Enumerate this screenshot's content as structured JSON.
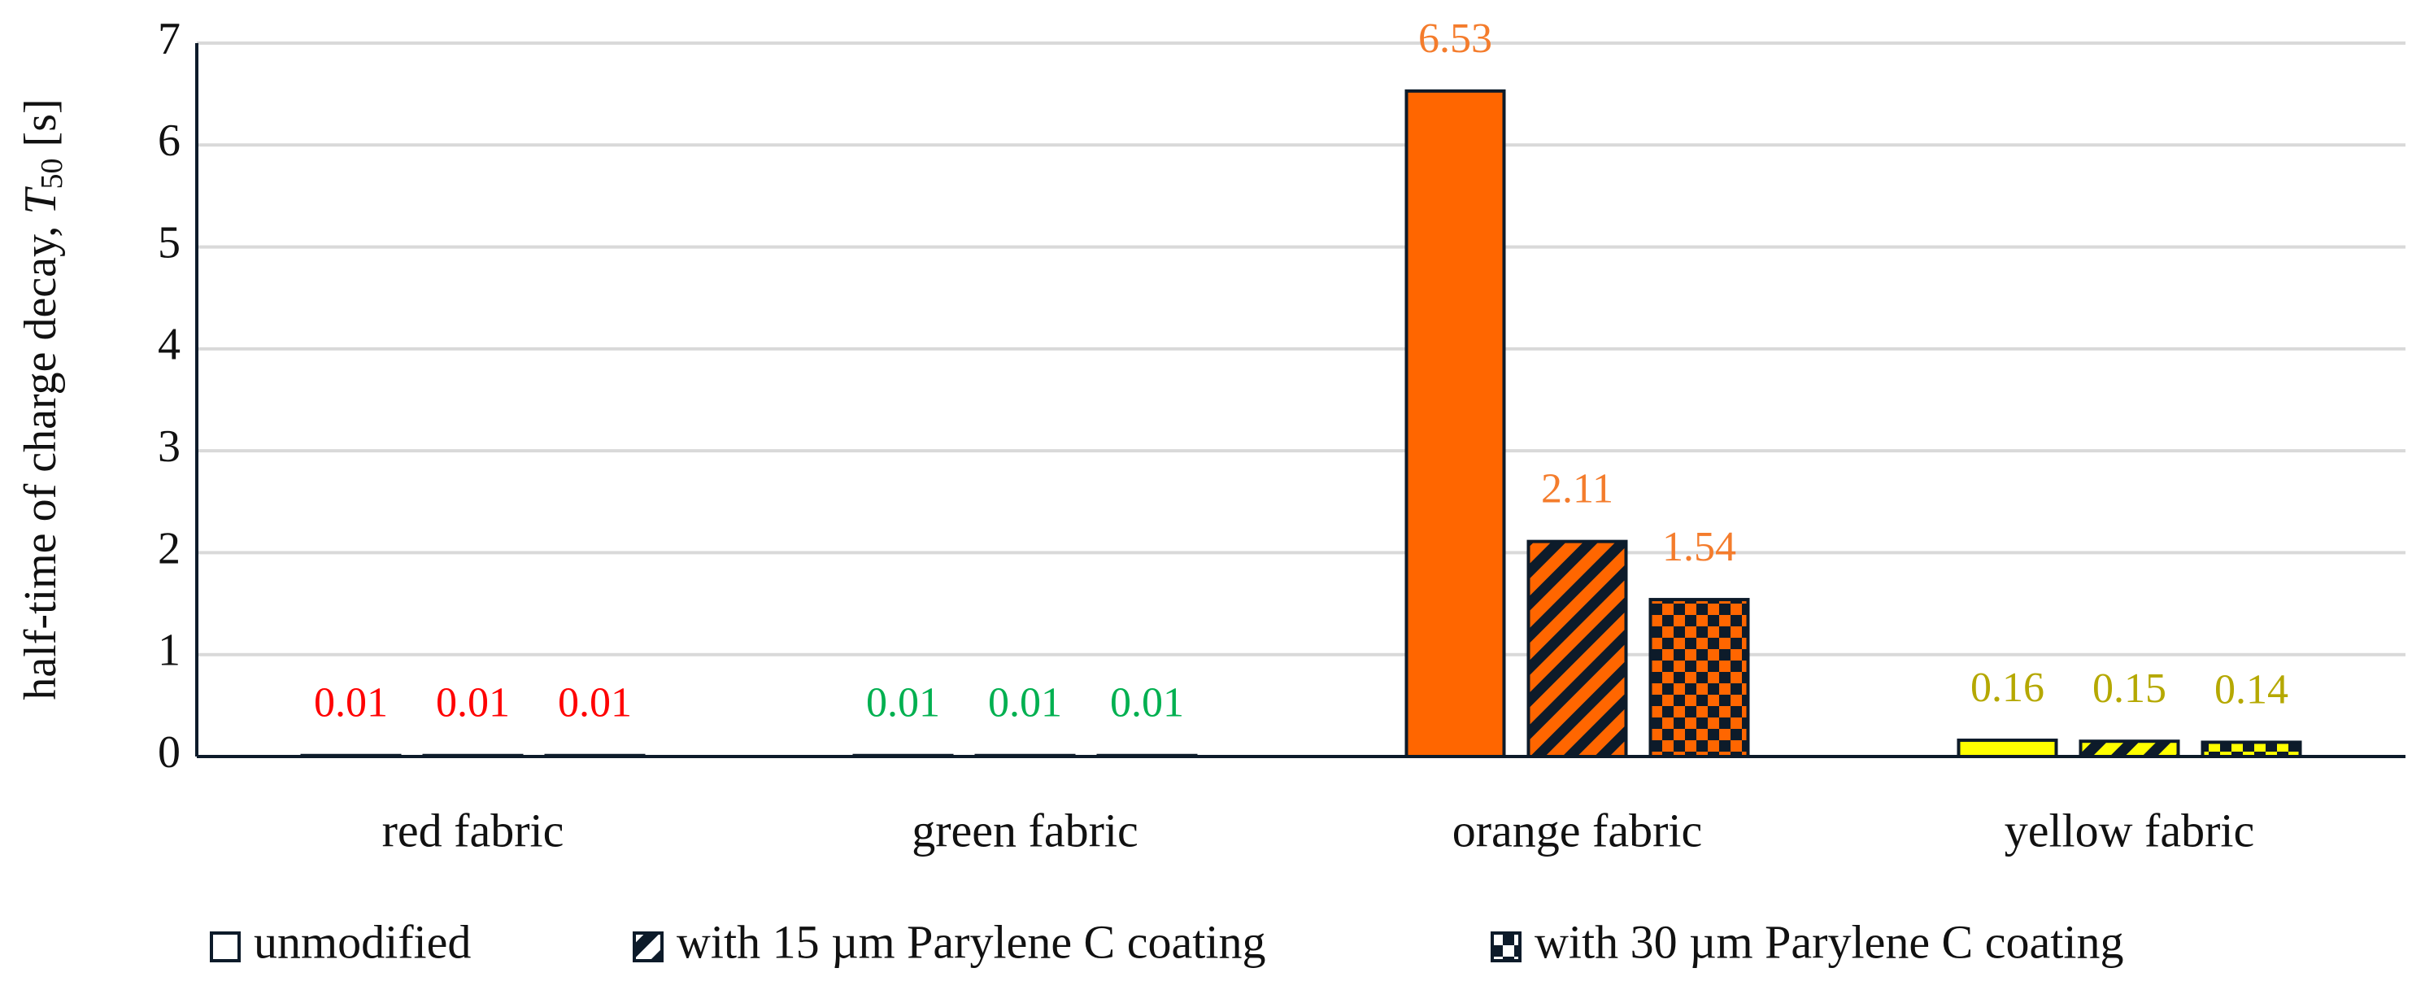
{
  "chart_data": {
    "type": "bar",
    "ylabel": "half-time of charge decay, ",
    "ylabel_symbol": "T",
    "ylabel_subscript": "50",
    "ylabel_unit": "[s]",
    "categories": [
      "red fabric",
      "green fabric",
      "orange fabric",
      "yellow fabric"
    ],
    "category_colors": [
      "#ff0000",
      "#00b050",
      "#ff6600",
      "#ffff00"
    ],
    "label_colors": [
      "#ff0000",
      "#00b050",
      "#f47c2c",
      "#b5a800"
    ],
    "series": [
      {
        "name": "unmodified",
        "pattern": "solid",
        "values": [
          0.01,
          0.01,
          6.53,
          0.16
        ]
      },
      {
        "name": "with 15 µm Parylene C coating",
        "pattern": "hatch",
        "values": [
          0.01,
          0.01,
          2.11,
          0.15
        ]
      },
      {
        "name": "with 30 µm Parylene C coating",
        "pattern": "checker",
        "values": [
          0.01,
          0.01,
          1.54,
          0.14
        ]
      }
    ],
    "ylim": [
      0,
      7
    ],
    "yticks": [
      0,
      1,
      2,
      3,
      4,
      5,
      6,
      7
    ],
    "grid": true,
    "legend": "bottom"
  }
}
